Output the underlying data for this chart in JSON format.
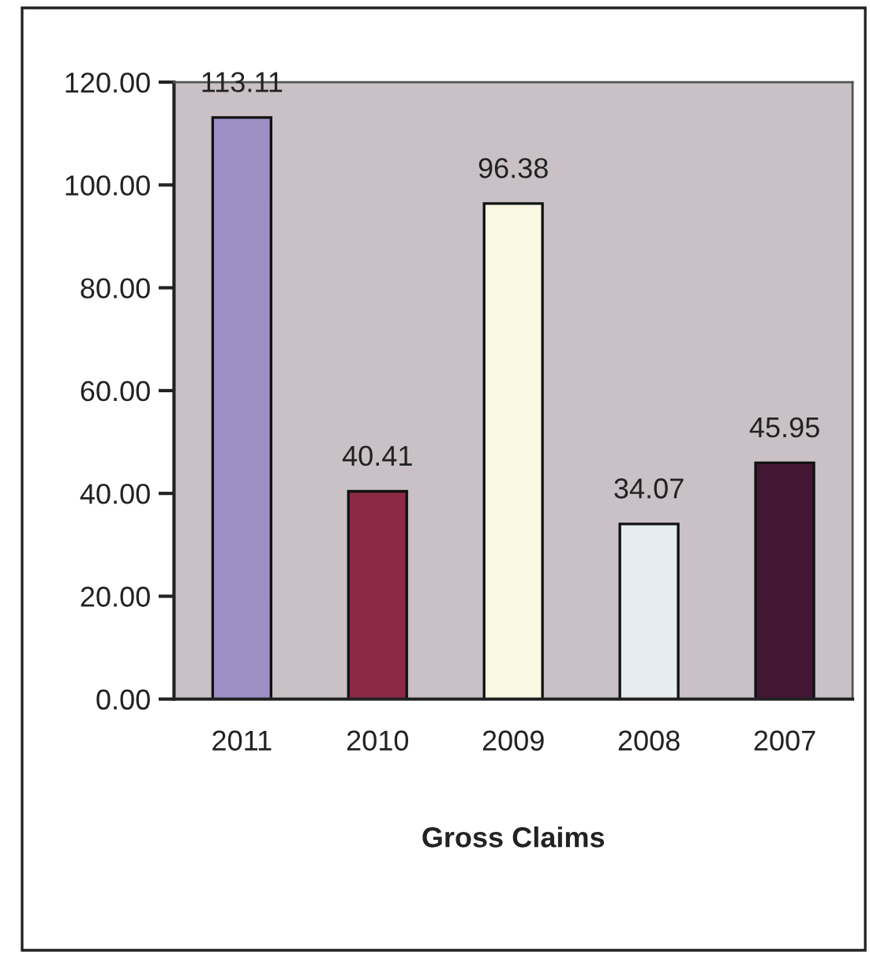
{
  "chart_data": {
    "type": "bar",
    "xlabel": "Gross Claims",
    "categories": [
      "2011",
      "2010",
      "2009",
      "2008",
      "2007"
    ],
    "values": [
      113.11,
      40.41,
      96.38,
      34.07,
      45.95
    ],
    "colors": [
      "#9a86cf",
      "#9c1a3e",
      "#fbfbe0",
      "#e4eef3",
      "#4a0f35"
    ],
    "ylim": [
      0,
      120
    ],
    "yticks": [
      {
        "value": 0,
        "label": "0.00"
      },
      {
        "value": 20,
        "label": "20.00"
      },
      {
        "value": 40,
        "label": "40.00"
      },
      {
        "value": 60,
        "label": "60.00"
      },
      {
        "value": 80,
        "label": "80.00"
      },
      {
        "value": 100,
        "label": "100.00"
      },
      {
        "value": 120,
        "label": "120.00"
      }
    ],
    "data_labels": true,
    "grid": false,
    "legend": false
  }
}
